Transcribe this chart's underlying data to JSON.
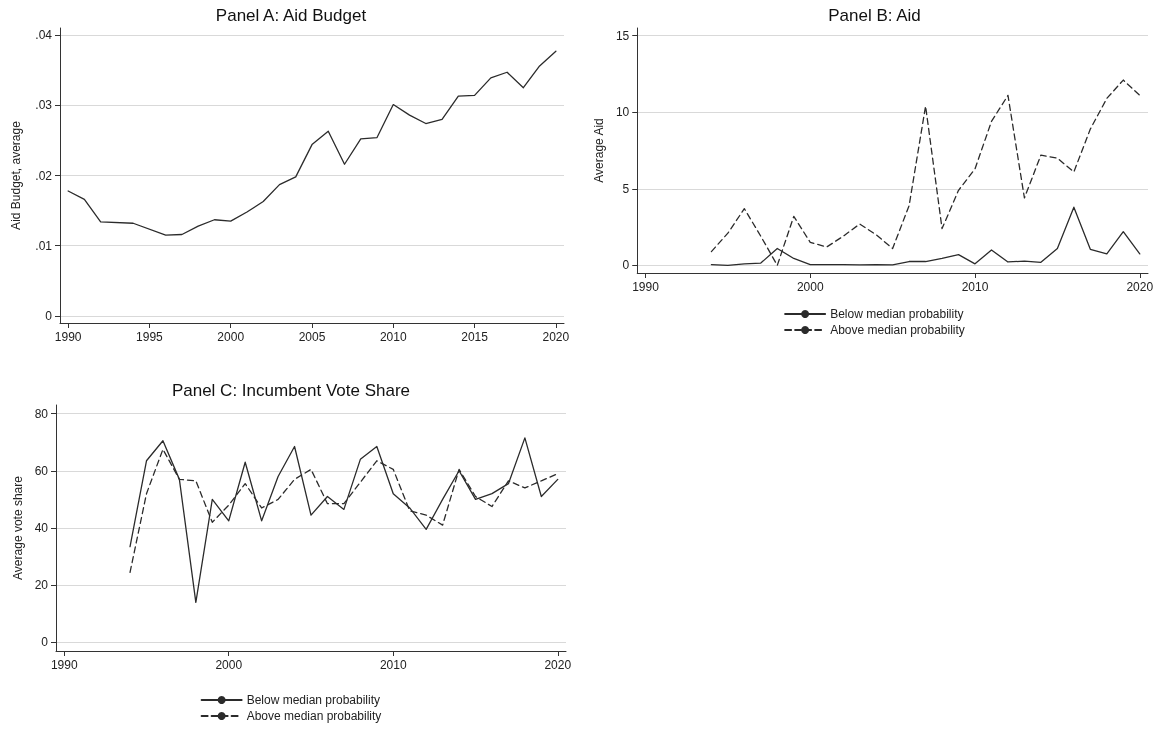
{
  "chart_data": [
    {
      "type": "line",
      "title": "Panel A: Aid Budget",
      "ylabel": "Aid Budget, average",
      "xlim": [
        1989.5,
        2020.5
      ],
      "xticks": [
        1990,
        1995,
        2000,
        2005,
        2010,
        2015,
        2020
      ],
      "ylim": [
        -0.001,
        0.041
      ],
      "yticks": [
        0,
        {
          "value": 0.01,
          "label": ".01"
        },
        {
          "value": 0.02,
          "label": ".02"
        },
        {
          "value": 0.03,
          "label": ".03"
        },
        {
          "value": 0.04,
          "label": ".04"
        }
      ],
      "grid": "y",
      "marker": "none",
      "legend": false,
      "series": [
        {
          "color": "#2b2b2b",
          "line_style": "solid",
          "x": [
            1990,
            1991,
            1992,
            1994,
            1996,
            1997,
            1998,
            1999,
            2000,
            2001,
            2002,
            2003,
            2004,
            2005,
            2006,
            2007,
            2008,
            2009,
            2010,
            2011,
            2012,
            2013,
            2014,
            2015,
            2016,
            2017,
            2018,
            2019,
            2020
          ],
          "values": [
            0.0178,
            0.0166,
            0.0134,
            0.0132,
            0.0115,
            0.0116,
            0.0128,
            0.0137,
            0.0135,
            0.0148,
            0.0163,
            0.0187,
            0.0198,
            0.0244,
            0.0263,
            0.0216,
            0.0252,
            0.0254,
            0.0301,
            0.0286,
            0.0274,
            0.028,
            0.0313,
            0.0314,
            0.0339,
            0.0347,
            0.0325,
            0.0356,
            0.0377
          ]
        }
      ]
    },
    {
      "type": "line",
      "title": "Panel B: Aid",
      "ylabel": "Average Aid",
      "xlim": [
        1989.5,
        2020.5
      ],
      "xticks": [
        1990,
        2000,
        2010,
        2020
      ],
      "ylim": [
        -0.5,
        15.5
      ],
      "yticks": [
        0,
        5,
        10,
        15
      ],
      "grid": "y",
      "marker": "none",
      "legend": "bottom",
      "x": [
        1994,
        1995,
        1996,
        1997,
        1998,
        1999,
        2000,
        2001,
        2002,
        2003,
        2004,
        2005,
        2006,
        2007,
        2008,
        2009,
        2010,
        2011,
        2012,
        2013,
        2014,
        2015,
        2016,
        2017,
        2018,
        2019,
        2020
      ],
      "series": [
        {
          "name": "Below median probability",
          "color": "#2b2b2b",
          "line_style": "solid",
          "values": [
            0.05,
            0,
            0.1,
            0.15,
            1.1,
            0.45,
            0.05,
            0.05,
            0.05,
            0.03,
            0.05,
            0.03,
            0.25,
            0.25,
            0.45,
            0.7,
            0.1,
            1.0,
            0.22,
            0.28,
            0.2,
            1.1,
            3.8,
            1.05,
            0.75,
            2.2,
            0.75
          ]
        },
        {
          "name": "Above median probability",
          "color": "#2b2b2b",
          "line_style": "dashed",
          "values": [
            0.9,
            2.1,
            3.7,
            1.9,
            0,
            3.2,
            1.5,
            1.2,
            1.9,
            2.7,
            2.0,
            1.1,
            3.9,
            10.4,
            2.4,
            4.9,
            6.3,
            9.4,
            11.1,
            4.4,
            7.2,
            7.0,
            6.1,
            8.9,
            10.9,
            12.1,
            11.1
          ]
        }
      ]
    },
    {
      "type": "line",
      "title": "Panel C: Incumbent Vote Share",
      "ylabel": "Average vote share",
      "xlim": [
        1989.5,
        2020.5
      ],
      "xticks": [
        1990,
        2000,
        2010,
        2020
      ],
      "ylim": [
        -3,
        83
      ],
      "yticks": [
        0,
        20,
        40,
        60,
        80
      ],
      "grid": "y",
      "marker": "none",
      "legend": "bottom",
      "x": [
        1994,
        1995,
        1996,
        1997,
        1998,
        1999,
        2000,
        2001,
        2002,
        2003,
        2004,
        2005,
        2006,
        2007,
        2008,
        2009,
        2010,
        2011,
        2012,
        2013,
        2014,
        2015,
        2016,
        2017,
        2018,
        2019,
        2020
      ],
      "series": [
        {
          "name": "Below median probability",
          "color": "#2b2b2b",
          "line_style": "solid",
          "values": [
            33.5,
            63.5,
            70.5,
            57,
            14,
            50,
            42.5,
            63,
            42.5,
            58,
            68.5,
            44.5,
            51,
            46.5,
            64,
            68.5,
            52,
            47,
            39.5,
            50,
            60,
            50,
            52,
            55.5,
            71.5,
            51,
            57
          ]
        },
        {
          "name": "Above median probability",
          "color": "#2b2b2b",
          "line_style": "dashed",
          "values": [
            24.5,
            52,
            67.5,
            57,
            56.5,
            42,
            48,
            55.5,
            47,
            50,
            57,
            60.5,
            48.5,
            48.5,
            56,
            63.5,
            60.5,
            46,
            44.5,
            41,
            60.5,
            51,
            47.5,
            56.5,
            54,
            56.5,
            59
          ]
        }
      ]
    }
  ]
}
